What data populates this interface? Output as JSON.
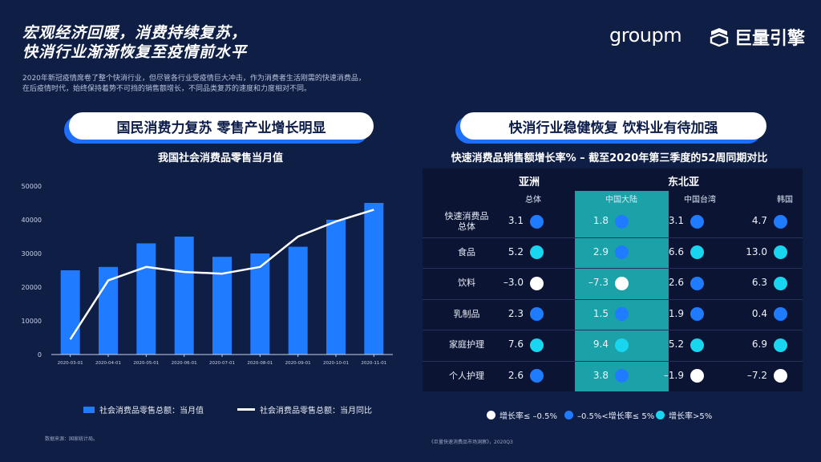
{
  "header": {
    "title_line1": "宏观经济回暖，消费持续复苏，",
    "title_line2": "快消行业渐渐恢复至疫情前水平",
    "brand_groupm": "groupm",
    "brand_ocean": "巨量引擎"
  },
  "intro": {
    "line1": "2020年新冠疫情席卷了整个快消行业，但尽管各行业受疫情巨大冲击，作为消费者生活刚需的快速消费品，",
    "line2": "在后疫情时代，始终保持着势不可挡的销售额增长，不同品类复苏的速度和力度相对不同。"
  },
  "left_panel": {
    "pill": "国民消费力复苏 零售产业增长明显",
    "legend_bar": "社会消费品零售总额：当月值",
    "legend_line": "社会消费品零售总额：当月同比",
    "source": "数据来源：国家统计局。"
  },
  "chart_data": {
    "type": "bar",
    "title": "我国社会消费品零售当月值",
    "categories": [
      "2020-03-01",
      "2020-04-01",
      "2020-05-01",
      "2020-06-01",
      "2020-07-01",
      "2020-08-01",
      "2020-09-01",
      "2020-10-01",
      "2020-11-01"
    ],
    "yticks": [
      "0",
      "10000",
      "20000",
      "30000",
      "40000",
      "50000"
    ],
    "ylim": [
      0,
      50000
    ],
    "series": [
      {
        "name": "社会消费品零售总额：当月值",
        "type": "bar",
        "color": "#1f7bff",
        "values": [
          25000,
          26000,
          33000,
          35000,
          29000,
          30000,
          32000,
          40000,
          45000
        ]
      },
      {
        "name": "社会消费品零售总额：当月同比",
        "type": "line",
        "color": "#ffffff",
        "values": [
          4500,
          22000,
          26000,
          24500,
          24000,
          26000,
          35000,
          39500,
          43000
        ]
      }
    ],
    "grid": false,
    "legend": "bottom"
  },
  "right_panel": {
    "pill": "快消行业稳健恢复 饮料业有待加强",
    "heading": "快速消费品销售额增长率% – 截至2020年第三季度的52周同期对比",
    "regions": [
      "亚洲",
      "东北亚"
    ],
    "columns": [
      "总体",
      "中国大陆",
      "中国台湾",
      "韩国"
    ],
    "rows": [
      {
        "label": "快速消费品总体",
        "label_l1": "快速消费品",
        "label_l2": "总体",
        "values": [
          "3.1",
          "1.8",
          "3.1",
          "4.7"
        ],
        "levels": [
          "mid",
          "mid",
          "mid",
          "mid"
        ]
      },
      {
        "label": "食品",
        "values": [
          "5.2",
          "2.9",
          "6.6",
          "13.0"
        ],
        "levels": [
          "high",
          "mid",
          "high",
          "high"
        ]
      },
      {
        "label": "饮料",
        "values": [
          "–3.0",
          "–7.3",
          "2.6",
          "6.3"
        ],
        "levels": [
          "low",
          "low",
          "mid",
          "high"
        ]
      },
      {
        "label": "乳制品",
        "values": [
          "2.3",
          "1.5",
          "1.9",
          "0.4"
        ],
        "levels": [
          "mid",
          "mid",
          "mid",
          "mid"
        ]
      },
      {
        "label": "家庭护理",
        "values": [
          "7.6",
          "9.4",
          "5.2",
          "6.9"
        ],
        "levels": [
          "high",
          "high",
          "high",
          "high"
        ]
      },
      {
        "label": "个人护理",
        "values": [
          "2.6",
          "3.8",
          "–1.9",
          "–7.2"
        ],
        "levels": [
          "mid",
          "mid",
          "low",
          "low"
        ]
      }
    ],
    "legend": [
      {
        "label": "增长率≤ –0.5%",
        "color": "#ffffff"
      },
      {
        "label": "–0.5%<增长率≤ 5%",
        "color": "#1f7bff"
      },
      {
        "label": "增长率>5%",
        "color": "#19d6f0"
      }
    ],
    "level_colors": {
      "low": "#ffffff",
      "mid": "#1f7bff",
      "high": "#19d6f0"
    },
    "source": "《巨量快速消费品市场洞察》，2020Q3"
  }
}
